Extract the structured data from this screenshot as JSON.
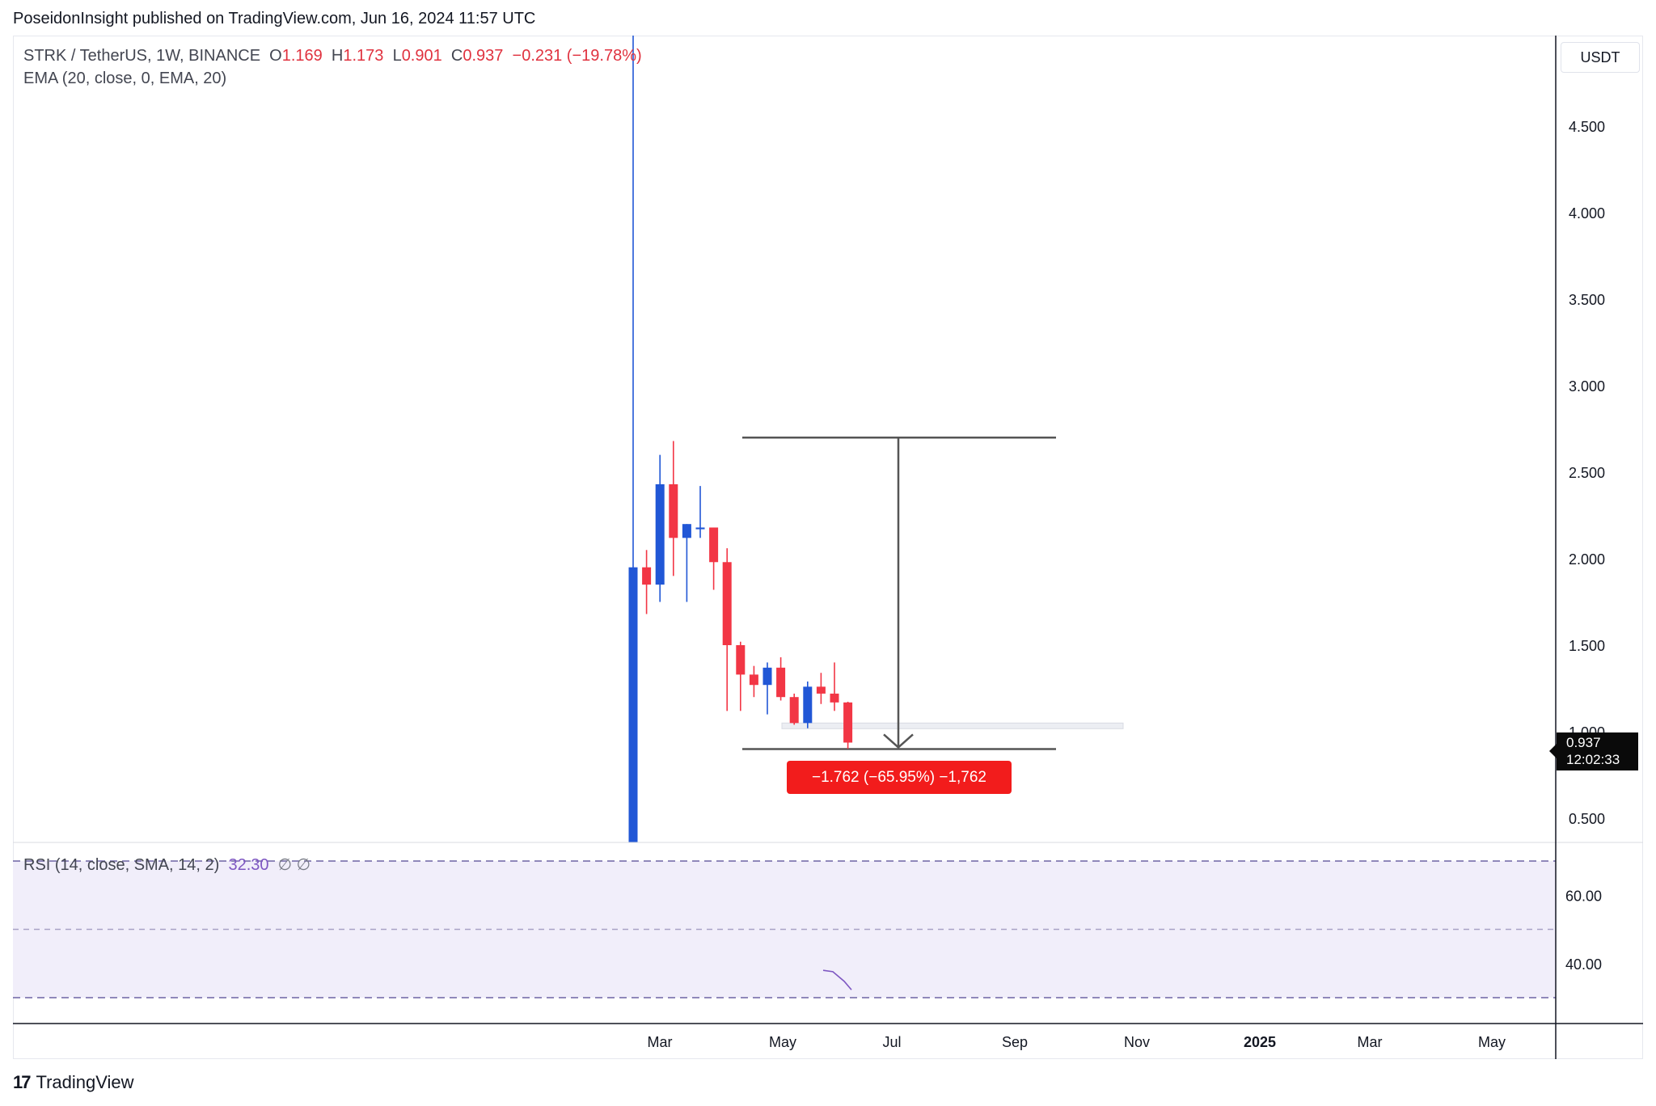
{
  "header": {
    "publisher": "PoseidonInsight published on TradingView.com, Jun 16, 2024 11:57 UTC"
  },
  "legend": {
    "symbol": "STRK / TetherUS, 1W, BINANCE",
    "o_label": "O",
    "o_value": "1.169",
    "h_label": "H",
    "h_value": "1.173",
    "l_label": "L",
    "l_value": "0.901",
    "c_label": "C",
    "c_value": "0.937",
    "change": "−0.231 (−19.78%)",
    "ema": "EMA (20, close, 0, EMA, 20)"
  },
  "rsi_legend": {
    "label": "RSI (14, close, SMA, 14, 2)",
    "value": "32.30",
    "extra": "∅ ∅"
  },
  "price_axis": {
    "unit": "USDT",
    "ticks": [
      "4.500",
      "4.000",
      "3.500",
      "3.000",
      "2.500",
      "2.000",
      "1.500",
      "1.000",
      "0.500"
    ]
  },
  "rsi_axis": {
    "ticks": [
      "60.00",
      "40.00"
    ]
  },
  "time_axis": {
    "ticks": [
      "Mar",
      "May",
      "Jul",
      "Sep",
      "Nov",
      "2025",
      "Mar",
      "May"
    ]
  },
  "price_tag": {
    "price": "0.937",
    "countdown": "12:02:33"
  },
  "measure": {
    "label": "−1.762 (−65.95%) −1,762",
    "top": 2.7,
    "bottom": 0.937
  },
  "footer": {
    "brand": "TradingView",
    "mark": "17"
  },
  "colors": {
    "up": "#2157d6",
    "down": "#f23645",
    "rsi": "#7e57c2",
    "rsi_band": "#f1eefa",
    "measure_label": "#f21c1c"
  },
  "chart_data": [
    {
      "type": "candlestick",
      "title": "STRK / TetherUS, 1W, BINANCE",
      "y_range": [
        0.3,
        4.8
      ],
      "ohlc": [
        {
          "o": 0.3,
          "h": 6.0,
          "l": 0.3,
          "c": 1.95
        },
        {
          "o": 1.95,
          "h": 2.05,
          "l": 1.68,
          "c": 1.85
        },
        {
          "o": 1.85,
          "h": 2.6,
          "l": 1.75,
          "c": 2.43
        },
        {
          "o": 2.43,
          "h": 2.68,
          "l": 1.9,
          "c": 2.12
        },
        {
          "o": 2.12,
          "h": 2.2,
          "l": 1.75,
          "c": 2.2
        },
        {
          "o": 2.17,
          "h": 2.42,
          "l": 2.12,
          "c": 2.18
        },
        {
          "o": 2.18,
          "h": 2.18,
          "l": 1.82,
          "c": 1.98
        },
        {
          "o": 1.98,
          "h": 2.06,
          "l": 1.12,
          "c": 1.5
        },
        {
          "o": 1.5,
          "h": 1.52,
          "l": 1.12,
          "c": 1.33
        },
        {
          "o": 1.33,
          "h": 1.38,
          "l": 1.2,
          "c": 1.27
        },
        {
          "o": 1.27,
          "h": 1.4,
          "l": 1.1,
          "c": 1.37
        },
        {
          "o": 1.37,
          "h": 1.43,
          "l": 1.18,
          "c": 1.2
        },
        {
          "o": 1.2,
          "h": 1.22,
          "l": 1.04,
          "c": 1.05
        },
        {
          "o": 1.05,
          "h": 1.29,
          "l": 1.02,
          "c": 1.26
        },
        {
          "o": 1.26,
          "h": 1.34,
          "l": 1.16,
          "c": 1.22
        },
        {
          "o": 1.22,
          "h": 1.4,
          "l": 1.12,
          "c": 1.169
        },
        {
          "o": 1.169,
          "h": 1.173,
          "l": 0.901,
          "c": 0.937
        }
      ]
    },
    {
      "type": "line",
      "title": "RSI (14, close, SMA, 14, 2)",
      "y_range": [
        30,
        78
      ],
      "bands": [
        70,
        50,
        30
      ],
      "series": [
        {
          "values": [
            38.0,
            37.6,
            34.8,
            32.3
          ]
        }
      ]
    }
  ]
}
